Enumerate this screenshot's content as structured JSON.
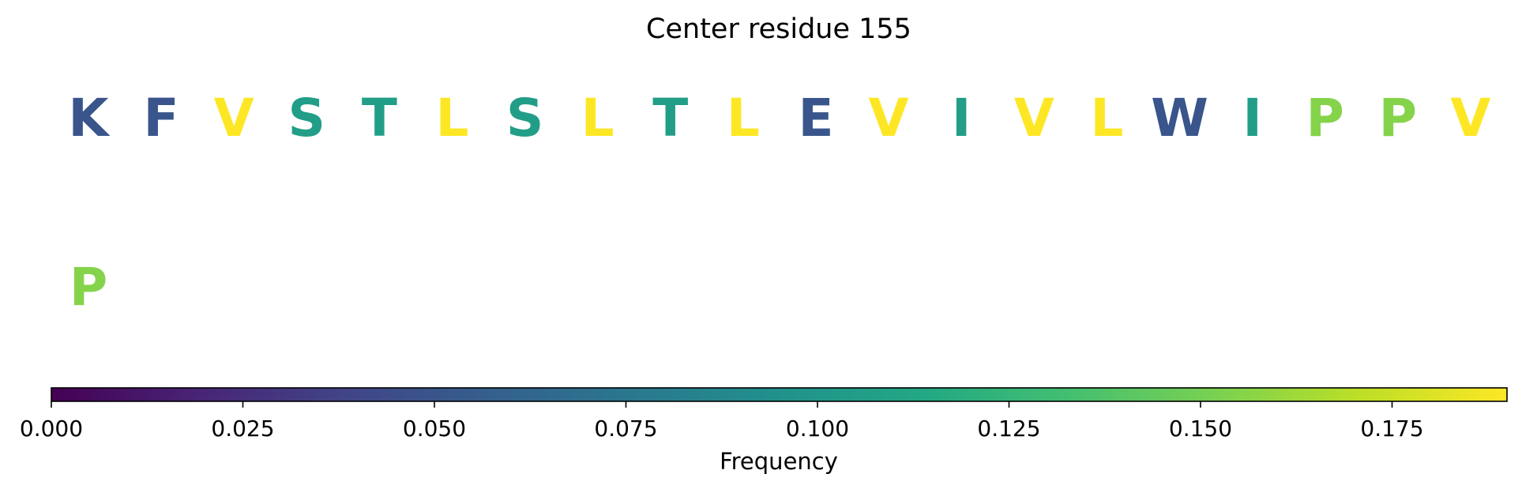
{
  "chart_data": {
    "type": "heatmap",
    "title": "Center residue 155",
    "rows": [
      {
        "residues": [
          "K",
          "F",
          "V",
          "S",
          "T",
          "L",
          "S",
          "L",
          "T",
          "L",
          "E",
          "V",
          "I",
          "V",
          "L",
          "W",
          "I",
          "P",
          "P",
          "V"
        ],
        "values": [
          0.05,
          0.05,
          0.19,
          0.105,
          0.105,
          0.19,
          0.105,
          0.19,
          0.105,
          0.19,
          0.05,
          0.19,
          0.105,
          0.19,
          0.19,
          0.05,
          0.105,
          0.155,
          0.155,
          0.19
        ]
      },
      {
        "residues": [
          "P"
        ],
        "values": [
          0.155
        ]
      }
    ],
    "colorbar": {
      "colormap": "viridis",
      "range": [
        0,
        0.19
      ],
      "ticks": [
        0.0,
        0.025,
        0.05,
        0.075,
        0.1,
        0.125,
        0.15,
        0.175
      ],
      "tick_labels": [
        "0.000",
        "0.025",
        "0.050",
        "0.075",
        "0.100",
        "0.125",
        "0.150",
        "0.175"
      ],
      "label": "Frequency",
      "orientation": "horizontal",
      "placement": "bottom"
    }
  }
}
